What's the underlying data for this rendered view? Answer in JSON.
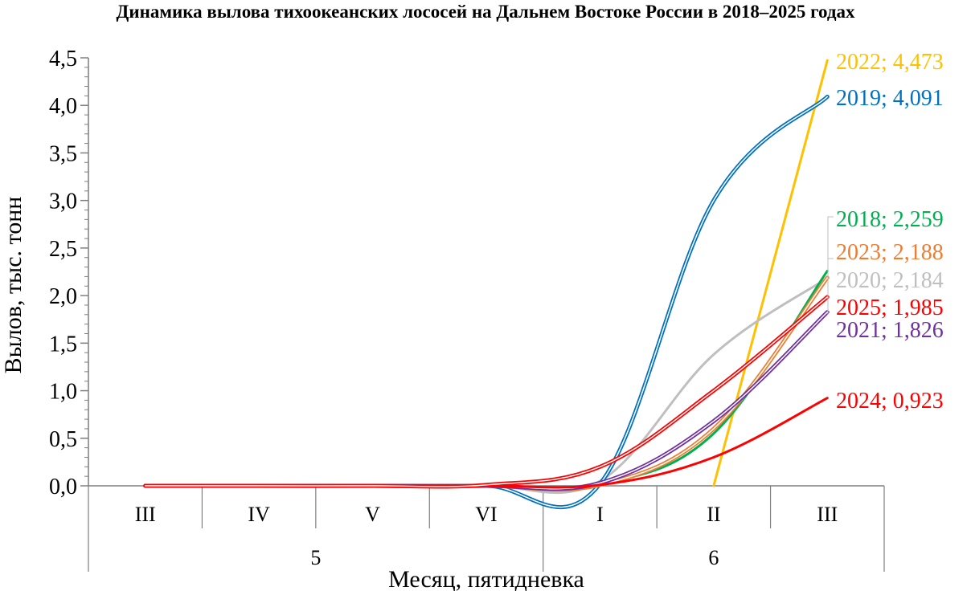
{
  "chart_data": {
    "type": "line",
    "title": "Динамика вылова тихоокеанских лососей на Дальнем Востоке России в 2018–2025 годах",
    "xlabel": "Месяц, пятидневка",
    "ylabel": "Вылов, тыс. тонн",
    "ylim": [
      0,
      4.5
    ],
    "y_ticks": [
      "0,0",
      "0,5",
      "1,0",
      "1,5",
      "2,0",
      "2,5",
      "3,0",
      "3,5",
      "4,0",
      "4,5"
    ],
    "categories": [
      "III",
      "IV",
      "V",
      "VI",
      "I",
      "II",
      "III"
    ],
    "month_groups": [
      {
        "label": "5",
        "span": 4
      },
      {
        "label": "6",
        "span": 3
      }
    ],
    "grid": false,
    "legend": "end-of-line labels",
    "series": [
      {
        "name": "2018",
        "label": "2018; 2,259",
        "color": "#00B050",
        "double": false,
        "values": [
          0,
          0,
          0,
          0,
          0.02,
          0.55,
          2.259
        ]
      },
      {
        "name": "2019",
        "label": "2019; 4,091",
        "color": "#0070C0",
        "double": true,
        "values": [
          0,
          0,
          0,
          0,
          0.02,
          3.0,
          4.091
        ]
      },
      {
        "name": "2020",
        "label": "2020; 2,184",
        "color": "#BFBFBF",
        "double": false,
        "values": [
          0,
          0,
          0,
          0,
          0.05,
          1.38,
          2.184
        ]
      },
      {
        "name": "2021",
        "label": "2021; 1,826",
        "color": "#7030A0",
        "double": true,
        "values": [
          0,
          0,
          0,
          0,
          0.03,
          0.68,
          1.826
        ]
      },
      {
        "name": "2022",
        "label": "2022; 4,473",
        "color": "#FFC000",
        "double": false,
        "values": [
          null,
          null,
          null,
          null,
          null,
          0.0,
          4.473
        ]
      },
      {
        "name": "2023",
        "label": "2023; 2,188",
        "color": "#ED7D31",
        "double": true,
        "values": [
          0,
          0,
          0,
          0,
          0.01,
          0.6,
          2.188
        ]
      },
      {
        "name": "2024",
        "label": "2024; 0,923",
        "color": "#FF0000",
        "double": false,
        "values": [
          0,
          0,
          0,
          0,
          0.01,
          0.3,
          0.923
        ]
      },
      {
        "name": "2025",
        "label": "2025; 1,985",
        "color": "#FF0000",
        "double": true,
        "values": [
          0,
          0,
          0,
          0.01,
          0.2,
          1.0,
          1.985
        ]
      }
    ]
  }
}
